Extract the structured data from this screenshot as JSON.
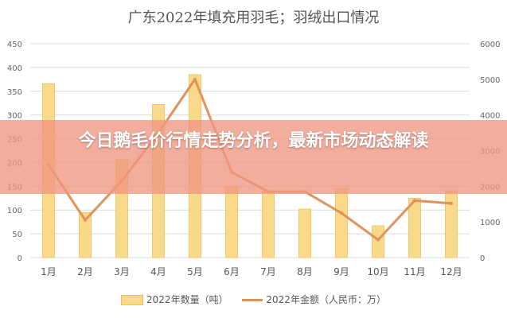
{
  "chart_data": {
    "type": "bar",
    "title": "广东2022年填充用羽毛；羽绒出口情况",
    "categories": [
      "1月",
      "2月",
      "3月",
      "4月",
      "5月",
      "6月",
      "7月",
      "8月",
      "9月",
      "10月",
      "11月",
      "12月"
    ],
    "series": [
      {
        "name": "2022年数量（吨）",
        "type": "bar",
        "axis": "left",
        "color": "#fbd98a",
        "values": [
          366,
          95,
          207,
          322,
          385,
          150,
          140,
          102,
          145,
          67,
          125,
          140
        ]
      },
      {
        "name": "2022年金额（人民币：万）",
        "type": "line",
        "axis": "right",
        "color": "#e0925a",
        "values": [
          2600,
          1050,
          2150,
          3500,
          5000,
          2400,
          1850,
          1850,
          1250,
          500,
          1600,
          1520
        ]
      }
    ],
    "y_left": {
      "range": [
        0,
        450
      ],
      "ticks": [
        "0",
        "50",
        "100",
        "150",
        "200",
        "250",
        "300",
        "350",
        "400",
        "450"
      ]
    },
    "y_right": {
      "range": [
        0,
        6000
      ],
      "ticks": [
        "0",
        "1000",
        "2000",
        "3000",
        "4000",
        "5000",
        "6000"
      ]
    },
    "grid": true,
    "legend_position": "bottom"
  },
  "overlay": {
    "banner_text": "今日鹅毛价行情走势分析，最新市场动态解读"
  },
  "colors": {
    "bar_fill": "#fbd98a",
    "bar_stroke": "#f0c050",
    "line": "#e0925a",
    "banner": "#f0967f",
    "grid": "#dcdcdc"
  }
}
